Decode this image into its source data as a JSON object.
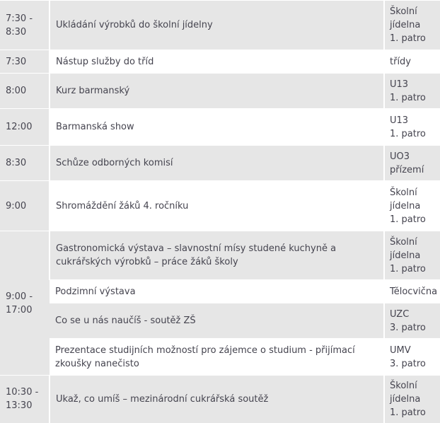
{
  "schedule": [
    {
      "time": "7:30 - 8:30",
      "items": [
        {
          "event": "Ukládání výrobků do školní jídelny",
          "place": [
            "Školní",
            "jídelna",
            "1. patro"
          ]
        }
      ]
    },
    {
      "time": "7:30",
      "items": [
        {
          "event": "Nástup služby do tříd",
          "place": [
            "třídy"
          ]
        }
      ]
    },
    {
      "time": "8:00",
      "items": [
        {
          "event": "Kurz barmanský",
          "place": [
            "U13",
            "1. patro"
          ]
        }
      ]
    },
    {
      "time": "12:00",
      "items": [
        {
          "event": "Barmanská show",
          "place": [
            "U13",
            "1. patro"
          ]
        }
      ]
    },
    {
      "time": "8:30",
      "items": [
        {
          "event": "Schůze odborných komisí",
          "place": [
            "UO3",
            "přízemí"
          ]
        }
      ]
    },
    {
      "time": "9:00",
      "items": [
        {
          "event": "Shromáždění žáků 4. ročníku",
          "place": [
            "Školní",
            "jídelna",
            "1. patro"
          ]
        }
      ]
    },
    {
      "time": "9:00 - 17:00",
      "items": [
        {
          "event": "Gastronomická výstava – slavnostní mísy studené kuchyně a cukrářských výrobků – práce žáků školy",
          "place": [
            "Školní",
            "jídelna",
            "1. patro"
          ]
        },
        {
          "event": "Podzimní výstava",
          "place": [
            "Tělocvična"
          ]
        },
        {
          "event": "Co se u nás naučíš - soutěž ZŠ",
          "place": [
            "UZC",
            "3. patro"
          ]
        },
        {
          "event": "Prezentace studijních možností pro zájemce o studium - přijímací zkoušky nanečisto",
          "place": [
            "UMV",
            "3. patro"
          ]
        }
      ]
    },
    {
      "time": "10:30 - 13:30",
      "items": [
        {
          "event": "Ukaž, co umíš – mezinárodní cukrářská soutěž",
          "place": [
            "Školní",
            "jídelna",
            "1. patro"
          ]
        }
      ]
    }
  ]
}
